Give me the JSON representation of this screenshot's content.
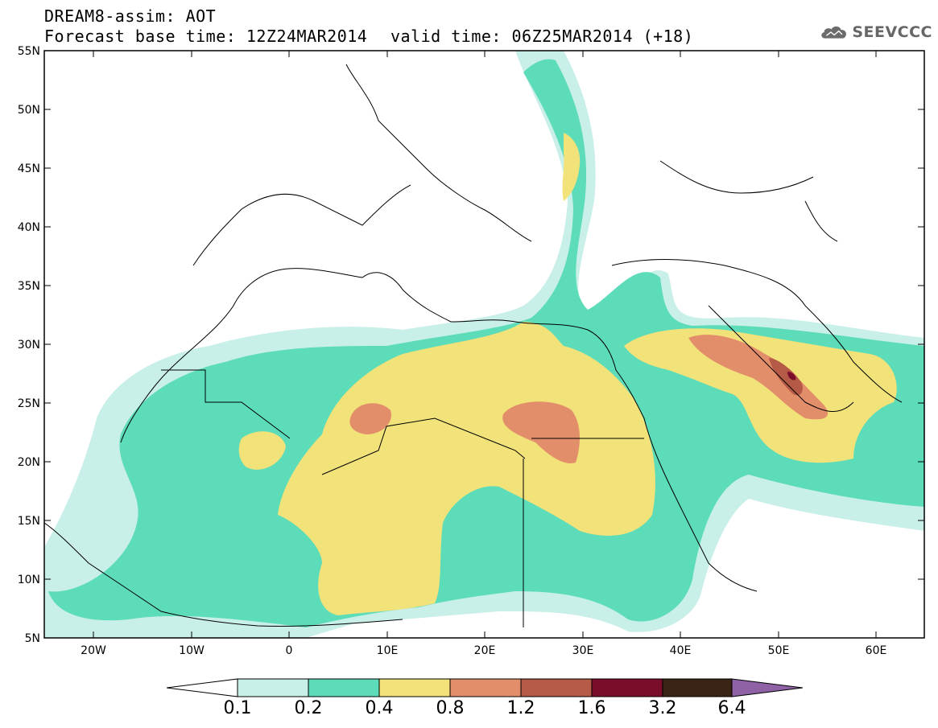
{
  "header": {
    "title_line1": "DREAM8-assim: AOT",
    "title_line2": "Forecast base time: 12Z24MAR2014",
    "valid_time": "valid time: 06Z25MAR2014 (+18)",
    "logo_text": "SEEVCCC"
  },
  "map": {
    "region": "North Africa, Mediterranean, Middle East",
    "lat_labels": [
      "55N",
      "50N",
      "45N",
      "40N",
      "35N",
      "30N",
      "25N",
      "20N",
      "15N",
      "10N",
      "5N"
    ],
    "lon_labels": [
      "20W",
      "10W",
      "0",
      "10E",
      "20E",
      "30E",
      "40E",
      "50E",
      "60E"
    ]
  },
  "legend": {
    "boundaries": [
      "0.1",
      "0.2",
      "0.4",
      "0.8",
      "1.2",
      "1.6",
      "3.2",
      "6.4"
    ],
    "colors": [
      "#c9efe9",
      "#5ddcb9",
      "#f2e27a",
      "#e38e6a",
      "#b55a46",
      "#7a0d2a",
      "#3a2415",
      "#8f62a6"
    ]
  }
}
